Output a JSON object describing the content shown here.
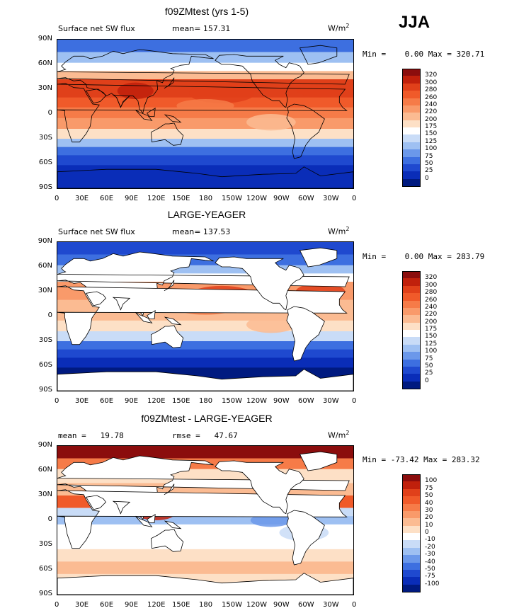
{
  "season": "JJA",
  "units": "W/m",
  "units_sup": "2",
  "panels": [
    {
      "title": "f09ZMtest (yrs 1-5)",
      "left_label": "Surface net SW flux",
      "mid_label": "mean= 157.31",
      "minmax": "Min =    0.00 Max = 320.71",
      "palette": "abs",
      "ocean_only": false
    },
    {
      "title": "LARGE-YEAGER",
      "left_label": "Surface net SW flux",
      "mid_label": "mean= 137.53",
      "minmax": "Min =    0.00 Max = 283.79",
      "palette": "abs",
      "ocean_only": true
    },
    {
      "title": "f09ZMtest - LARGE-YEAGER",
      "left_label": "mean =   19.78",
      "mid_label": "rmse =   47.67",
      "minmax": "Min = -73.42 Max = 283.32",
      "palette": "diff",
      "ocean_only": true
    }
  ],
  "lat_ticks": [
    "90N",
    "60N",
    "30N",
    "0",
    "30S",
    "60S",
    "90S"
  ],
  "lon_ticks": [
    "0",
    "30E",
    "60E",
    "90E",
    "120E",
    "150E",
    "180",
    "150W",
    "120W",
    "90W",
    "60W",
    "30W",
    "0"
  ],
  "colorbars": {
    "abs": {
      "labels": [
        "320",
        "300",
        "280",
        "260",
        "240",
        "220",
        "200",
        "175",
        "150",
        "125",
        "100",
        "75",
        "50",
        "25",
        "0"
      ],
      "colors": [
        "#8b0d0d",
        "#c0200c",
        "#e0401a",
        "#f05a2a",
        "#f67b48",
        "#f99a6a",
        "#fbbb92",
        "#fde0c6",
        "#ffffff",
        "#c9dcf7",
        "#9ec0f2",
        "#6b98ea",
        "#3d6fe0",
        "#1f49cf",
        "#0a2db8",
        "#001a80"
      ]
    },
    "diff": {
      "labels": [
        "100",
        "75",
        "50",
        "40",
        "30",
        "20",
        "10",
        "0",
        "-10",
        "-20",
        "-30",
        "-40",
        "-50",
        "-75",
        "-100"
      ],
      "colors": [
        "#8b0d0d",
        "#c0200c",
        "#e0401a",
        "#f05a2a",
        "#f67b48",
        "#f99a6a",
        "#fbbb92",
        "#fde0c6",
        "#ffffff",
        "#c9dcf7",
        "#9ec0f2",
        "#6b98ea",
        "#3d6fe0",
        "#1f49cf",
        "#0a2db8",
        "#001a80"
      ]
    }
  }
}
